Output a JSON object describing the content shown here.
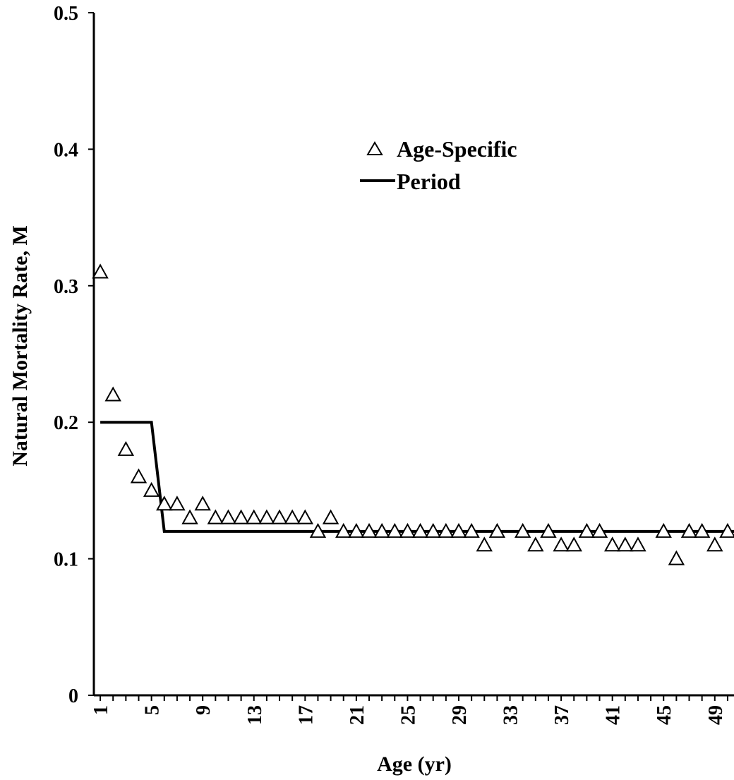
{
  "chart_data": {
    "type": "scatter",
    "title": "",
    "xlabel": "Age (yr)",
    "ylabel": "Natural Mortality Rate, M",
    "xlim": [
      0.5,
      50.5
    ],
    "ylim": [
      0,
      0.5
    ],
    "yticks": [
      "0",
      "0.1",
      "0.2",
      "0.3",
      "0.4",
      "0.5"
    ],
    "xticks": [
      "1",
      "5",
      "9",
      "13",
      "17",
      "21",
      "25",
      "29",
      "33",
      "37",
      "41",
      "45",
      "49"
    ],
    "grid": false,
    "legend_position": "top-right",
    "series": [
      {
        "name": "Age-Specific",
        "marker": "open-triangle",
        "x": [
          1,
          2,
          3,
          4,
          5,
          6,
          7,
          8,
          9,
          10,
          11,
          12,
          13,
          14,
          15,
          16,
          17,
          18,
          19,
          20,
          21,
          22,
          23,
          24,
          25,
          26,
          27,
          28,
          29,
          30,
          31,
          32,
          34,
          35,
          36,
          37,
          38,
          39,
          40,
          41,
          42,
          43,
          45,
          46,
          47,
          48,
          49,
          50
        ],
        "y": [
          0.31,
          0.22,
          0.18,
          0.16,
          0.15,
          0.14,
          0.14,
          0.13,
          0.14,
          0.13,
          0.13,
          0.13,
          0.13,
          0.13,
          0.13,
          0.13,
          0.13,
          0.12,
          0.13,
          0.12,
          0.12,
          0.12,
          0.12,
          0.12,
          0.12,
          0.12,
          0.12,
          0.12,
          0.12,
          0.12,
          0.11,
          0.12,
          0.12,
          0.11,
          0.12,
          0.11,
          0.11,
          0.12,
          0.12,
          0.11,
          0.11,
          0.11,
          0.12,
          0.1,
          0.12,
          0.12,
          0.11,
          0.12
        ]
      },
      {
        "name": "Period",
        "line": "solid",
        "x": [
          1,
          5,
          6,
          50.5
        ],
        "y": [
          0.2,
          0.2,
          0.12,
          0.12
        ]
      }
    ],
    "colors": {
      "marker": "#000000",
      "line": "#000000"
    }
  }
}
